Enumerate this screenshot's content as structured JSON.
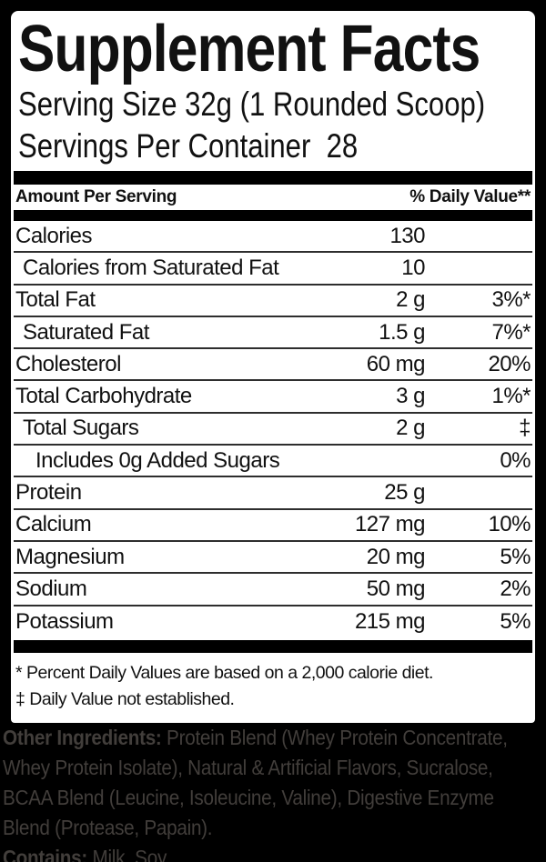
{
  "label": {
    "title": "Supplement Facts",
    "serving_size": "Serving Size 32g (1 Rounded Scoop)",
    "servings_per_container": "Servings Per Container  28",
    "header": {
      "amount_col": "Amount Per Serving",
      "daily_value_col": "% Daily Value**"
    },
    "rows": [
      {
        "name": "Calories",
        "amount": "130",
        "dv": "",
        "indent": 0
      },
      {
        "name": "Calories from Saturated Fat",
        "amount": "10",
        "dv": "",
        "indent": 1
      },
      {
        "name": "Total Fat",
        "amount": "2 g",
        "dv": "3%*",
        "indent": 0
      },
      {
        "name": "Saturated Fat",
        "amount": "1.5 g",
        "dv": "7%*",
        "indent": 1
      },
      {
        "name": "Cholesterol",
        "amount": "60 mg",
        "dv": "20%",
        "indent": 0
      },
      {
        "name": "Total Carbohydrate",
        "amount": "3 g",
        "dv": "1%*",
        "indent": 0
      },
      {
        "name": "Total Sugars",
        "amount": "2 g",
        "dv": "‡",
        "indent": 1
      },
      {
        "name": "Includes 0g Added Sugars",
        "amount": "",
        "dv": "0%",
        "indent": 2
      },
      {
        "name": "Protein",
        "amount": "25 g",
        "dv": "",
        "indent": 0
      },
      {
        "name": "Calcium",
        "amount": "127 mg",
        "dv": "10%",
        "indent": 0
      },
      {
        "name": "Magnesium",
        "amount": "20 mg",
        "dv": "5%",
        "indent": 0
      },
      {
        "name": "Sodium",
        "amount": "50 mg",
        "dv": "2%",
        "indent": 0
      },
      {
        "name": "Potassium",
        "amount": "215 mg",
        "dv": "5%",
        "indent": 0
      }
    ],
    "footnotes": [
      "* Percent Daily Values are based on a 2,000 calorie diet.",
      "‡ Daily Value not established."
    ],
    "footer_lines": [
      {
        "bold": "Other Ingredients:",
        "text": " Protein Blend (Whey Protein Concentrate,"
      },
      {
        "bold": "",
        "text": "Whey Protein Isolate), Natural & Artificial Flavors, Sucralose,"
      },
      {
        "bold": "",
        "text": "BCAA Blend (Leucine, Isoleucine, Valine), Digestive Enzyme"
      },
      {
        "bold": "",
        "text": "Blend (Protease, Papain)."
      },
      {
        "bold": "Contains:",
        "text": " Milk, Soy."
      }
    ],
    "colors": {
      "frame": "#000000",
      "panel": "#ffffff",
      "text": "#111111",
      "footer_text": "#423e3b"
    }
  }
}
